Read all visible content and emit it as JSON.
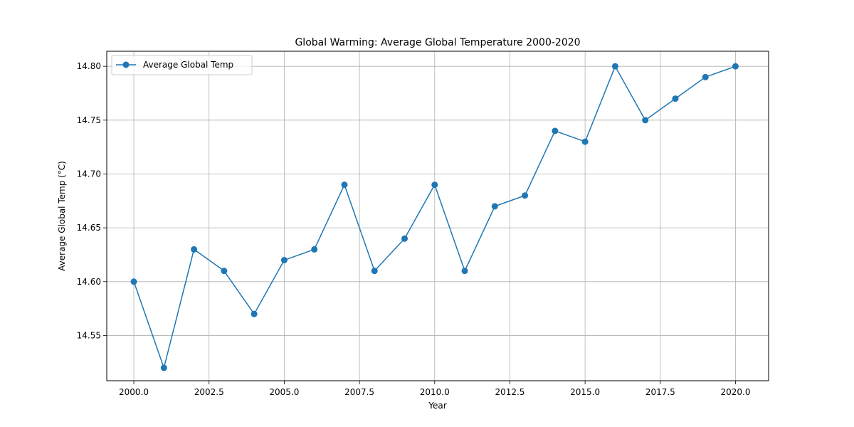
{
  "chart_data": {
    "type": "line",
    "title": "Global Warming: Average Global Temperature 2000-2020",
    "xlabel": "Year",
    "ylabel": "Average Global Temp (°C)",
    "xlim": [
      1999.1,
      2021.1
    ],
    "ylim": [
      14.508,
      14.814
    ],
    "xticks": [
      2000.0,
      2002.5,
      2005.0,
      2007.5,
      2010.0,
      2012.5,
      2015.0,
      2017.5,
      2020.0
    ],
    "xtick_labels": [
      "2000.0",
      "2002.5",
      "2005.0",
      "2007.5",
      "2010.0",
      "2012.5",
      "2015.0",
      "2017.5",
      "2020.0"
    ],
    "yticks": [
      14.55,
      14.6,
      14.65,
      14.7,
      14.75,
      14.8
    ],
    "ytick_labels": [
      "14.55",
      "14.60",
      "14.65",
      "14.70",
      "14.75",
      "14.80"
    ],
    "grid": true,
    "legend_position": "upper-left",
    "series": [
      {
        "name": "Average Global Temp",
        "color": "#1f77b4",
        "marker": "circle",
        "x": [
          2000,
          2001,
          2002,
          2003,
          2004,
          2005,
          2006,
          2007,
          2008,
          2009,
          2010,
          2011,
          2012,
          2013,
          2014,
          2015,
          2016,
          2017,
          2018,
          2019,
          2020
        ],
        "y": [
          14.6,
          14.52,
          14.63,
          14.61,
          14.57,
          14.62,
          14.63,
          14.69,
          14.61,
          14.64,
          14.69,
          14.61,
          14.67,
          14.68,
          14.74,
          14.73,
          14.8,
          14.75,
          14.77,
          14.79,
          14.8
        ]
      }
    ]
  }
}
